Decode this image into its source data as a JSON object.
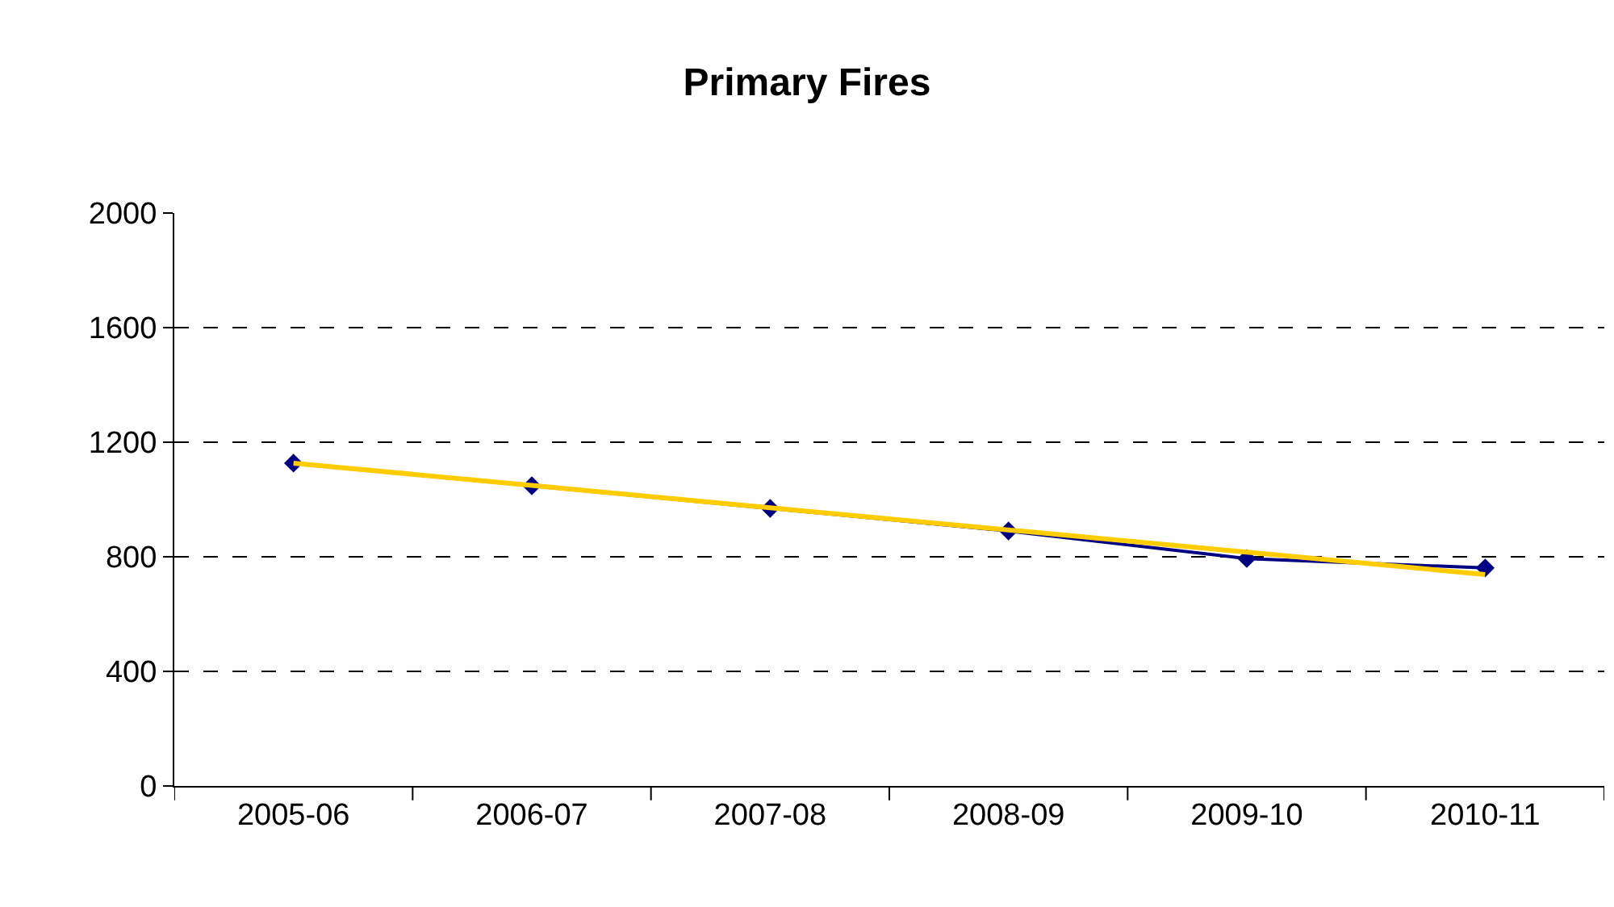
{
  "chart_data": {
    "type": "line",
    "title": "Primary Fires",
    "categories": [
      "2005-06",
      "2006-07",
      "2007-08",
      "2008-09",
      "2009-10",
      "2010-11"
    ],
    "series": [
      {
        "color": "#000080",
        "values": [
          1127,
          1048,
          969,
          890,
          794,
          761
        ],
        "marker": "diamond"
      },
      {
        "type": "line",
        "color": "#ffcc00",
        "values": [
          1127,
          1049,
          971,
          894,
          816,
          738
        ],
        "marker": "none"
      }
    ],
    "ylim": [
      0,
      2000
    ],
    "yticks": [
      0,
      400,
      800,
      1200,
      1600,
      2000
    ],
    "grid": "y"
  }
}
